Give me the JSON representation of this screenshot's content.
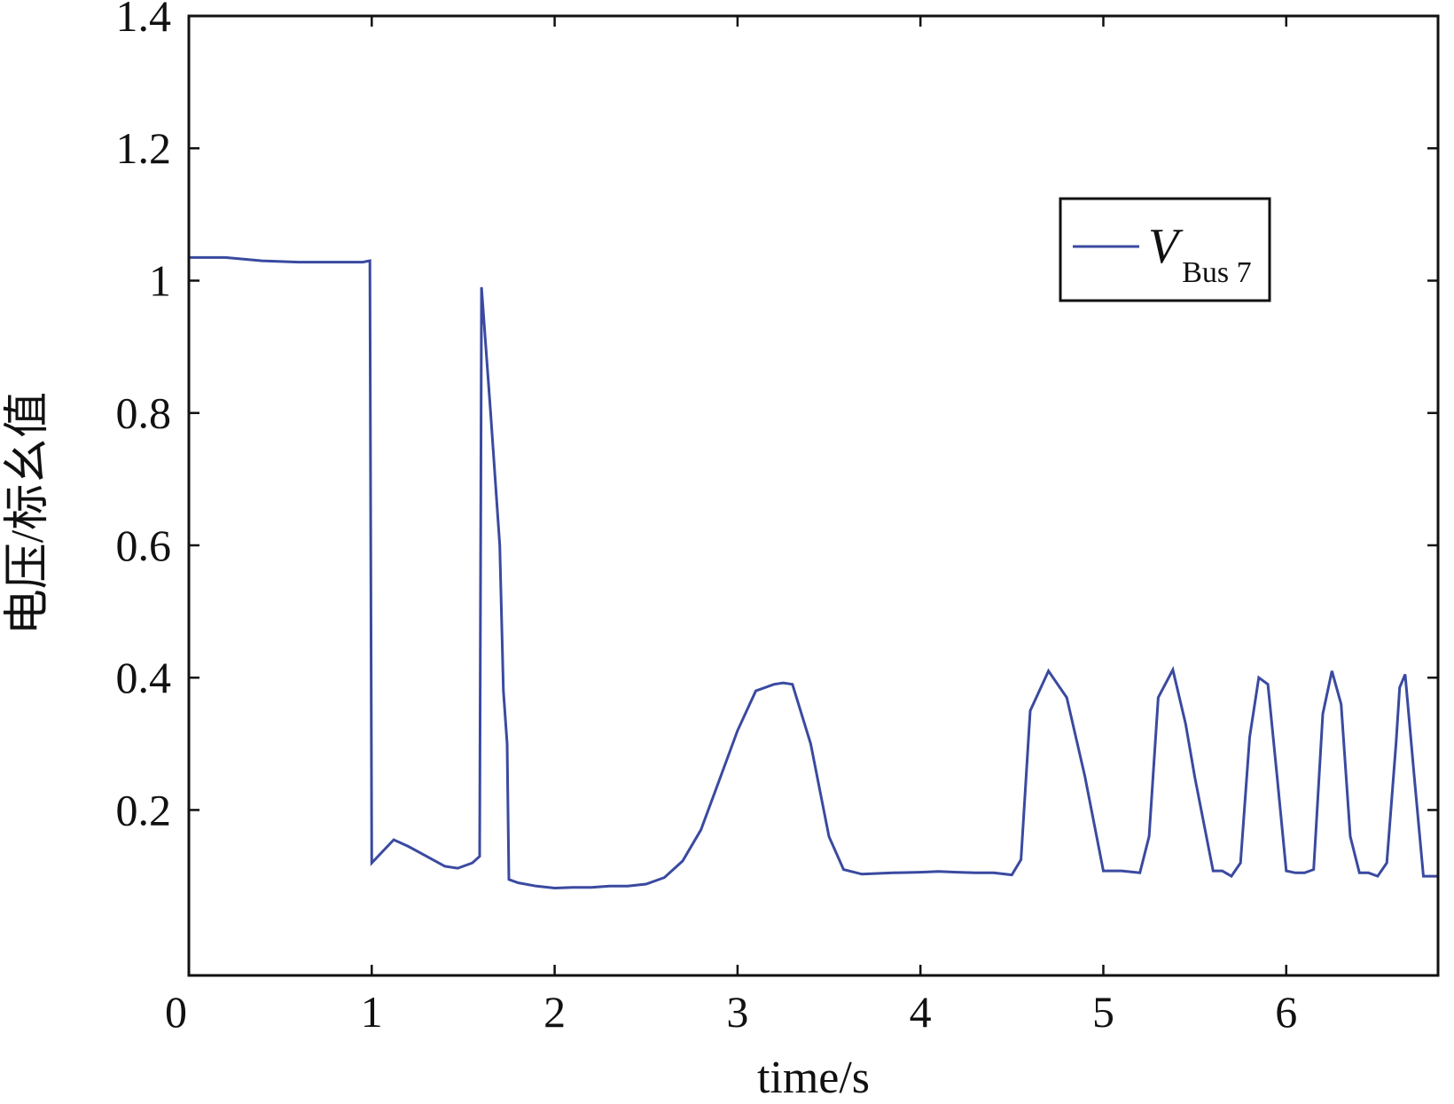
{
  "chart_data": {
    "type": "line",
    "xlabel": "time/s",
    "ylabel": "电压/标幺值",
    "xlim": [
      0,
      6.83
    ],
    "ylim": [
      -0.05,
      1.4
    ],
    "xticks": [
      0,
      1,
      2,
      3,
      4,
      5,
      6
    ],
    "yticks": [
      0.2,
      0.4,
      0.6,
      0.8,
      1,
      1.2,
      1.4
    ],
    "xtick_labels": [
      "0",
      "1",
      "2",
      "3",
      "4",
      "5",
      "6"
    ],
    "ytick_labels": [
      "0.2",
      "0.4",
      "0.6",
      "0.8",
      "1",
      "1.2",
      "1.4"
    ],
    "grid": false,
    "legend_position": "top-right",
    "colors": {
      "series": "#3a4aa0",
      "axes": "#111111"
    },
    "series": [
      {
        "name_main": "V",
        "name_sub": "Bus 7",
        "x": [
          0,
          0.2,
          0.4,
          0.6,
          0.8,
          0.95,
          0.99,
          1.0,
          1.12,
          1.2,
          1.3,
          1.4,
          1.47,
          1.55,
          1.59,
          1.6,
          1.65,
          1.7,
          1.72,
          1.74,
          1.75,
          1.8,
          1.9,
          2.0,
          2.1,
          2.2,
          2.3,
          2.4,
          2.5,
          2.6,
          2.7,
          2.8,
          2.9,
          3.0,
          3.1,
          3.2,
          3.25,
          3.3,
          3.4,
          3.5,
          3.58,
          3.68,
          3.75,
          3.85,
          4.0,
          4.1,
          4.2,
          4.3,
          4.4,
          4.5,
          4.55,
          4.6,
          4.7,
          4.8,
          4.9,
          5.0,
          5.05,
          5.1,
          5.2,
          5.25,
          5.3,
          5.38,
          5.45,
          5.5,
          5.6,
          5.65,
          5.7,
          5.75,
          5.8,
          5.85,
          5.9,
          5.95,
          6.0,
          6.05,
          6.1,
          6.15,
          6.2,
          6.25,
          6.3,
          6.35,
          6.4,
          6.45,
          6.5,
          6.55,
          6.6,
          6.62,
          6.65,
          6.7,
          6.75,
          6.8,
          6.83
        ],
        "y": [
          1.035,
          1.035,
          1.03,
          1.028,
          1.028,
          1.028,
          1.03,
          0.12,
          0.155,
          0.145,
          0.13,
          0.115,
          0.112,
          0.12,
          0.13,
          0.99,
          0.8,
          0.6,
          0.38,
          0.3,
          0.095,
          0.09,
          0.085,
          0.082,
          0.083,
          0.083,
          0.085,
          0.085,
          0.088,
          0.098,
          0.123,
          0.17,
          0.245,
          0.32,
          0.38,
          0.39,
          0.392,
          0.39,
          0.3,
          0.16,
          0.11,
          0.103,
          0.104,
          0.105,
          0.106,
          0.107,
          0.106,
          0.105,
          0.105,
          0.102,
          0.125,
          0.35,
          0.41,
          0.37,
          0.25,
          0.108,
          0.108,
          0.108,
          0.105,
          0.16,
          0.37,
          0.412,
          0.33,
          0.25,
          0.108,
          0.108,
          0.1,
          0.12,
          0.31,
          0.4,
          0.39,
          0.25,
          0.108,
          0.105,
          0.105,
          0.11,
          0.345,
          0.41,
          0.36,
          0.16,
          0.105,
          0.105,
          0.1,
          0.12,
          0.3,
          0.385,
          0.405,
          0.25,
          0.1,
          0.1,
          0.1
        ]
      }
    ]
  }
}
